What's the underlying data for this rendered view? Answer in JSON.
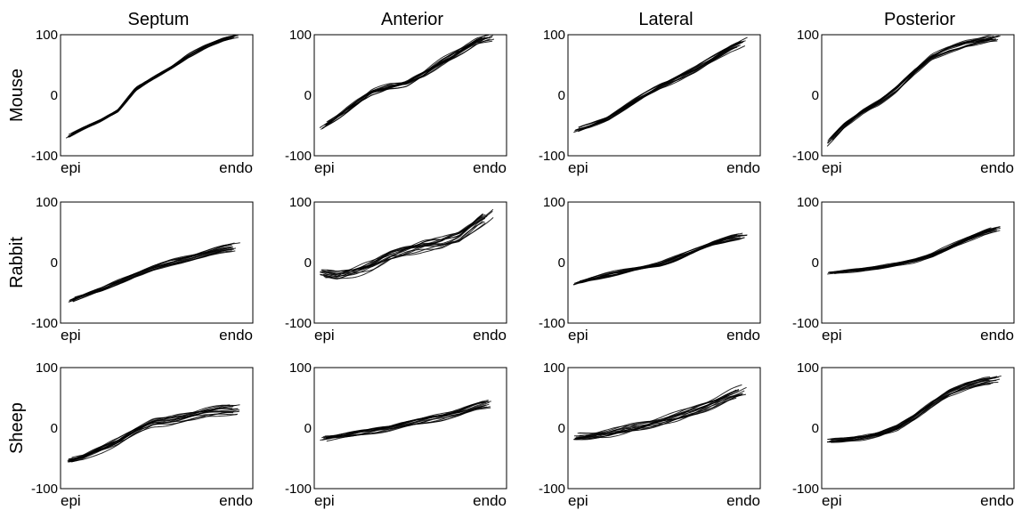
{
  "columns": [
    "Septum",
    "Anterior",
    "Lateral",
    "Posterior"
  ],
  "rows": [
    "Mouse",
    "Rabbit",
    "Sheep"
  ],
  "chart_data": {
    "type": "line",
    "layout": "small-multiples grid",
    "ylim": [
      -100,
      100
    ],
    "yticks": [
      100,
      0,
      -100
    ],
    "xtick_labels": [
      "epi",
      "endo"
    ],
    "trace_count_per_panel": 14,
    "panels": [
      {
        "row": "Mouse",
        "column": "Septum",
        "x": [
          0,
          0.1,
          0.2,
          0.3,
          0.4,
          0.5,
          0.6,
          0.7,
          0.8,
          0.9,
          1.0
        ],
        "y": [
          -70,
          -55,
          -42,
          -25,
          10,
          28,
          45,
          65,
          80,
          92,
          100
        ],
        "spread": 4
      },
      {
        "row": "Mouse",
        "column": "Anterior",
        "x": [
          0,
          0.1,
          0.2,
          0.3,
          0.4,
          0.5,
          0.6,
          0.7,
          0.8,
          0.9,
          1.0
        ],
        "y": [
          -55,
          -35,
          -15,
          5,
          15,
          20,
          35,
          55,
          72,
          88,
          97
        ],
        "spread": 9
      },
      {
        "row": "Mouse",
        "column": "Lateral",
        "x": [
          0,
          0.1,
          0.2,
          0.3,
          0.4,
          0.5,
          0.6,
          0.7,
          0.8,
          0.9,
          1.0
        ],
        "y": [
          -60,
          -50,
          -38,
          -20,
          -2,
          15,
          28,
          42,
          60,
          78,
          90
        ],
        "spread": 6
      },
      {
        "row": "Mouse",
        "column": "Posterior",
        "x": [
          0,
          0.1,
          0.2,
          0.3,
          0.4,
          0.5,
          0.6,
          0.7,
          0.8,
          0.9,
          1.0
        ],
        "y": [
          -80,
          -50,
          -28,
          -12,
          10,
          38,
          62,
          75,
          84,
          90,
          95
        ],
        "spread": 6
      },
      {
        "row": "Rabbit",
        "column": "Septum",
        "x": [
          0,
          0.1,
          0.2,
          0.3,
          0.4,
          0.5,
          0.6,
          0.7,
          0.8,
          0.9,
          1.0
        ],
        "y": [
          -65,
          -55,
          -45,
          -32,
          -20,
          -10,
          0,
          7,
          14,
          22,
          28
        ],
        "spread": 5
      },
      {
        "row": "Rabbit",
        "column": "Anterior",
        "x": [
          0,
          0.1,
          0.2,
          0.3,
          0.4,
          0.5,
          0.6,
          0.7,
          0.8,
          0.9,
          1.0
        ],
        "y": [
          -18,
          -22,
          -15,
          -5,
          10,
          20,
          28,
          32,
          42,
          65,
          85
        ],
        "spread": 12
      },
      {
        "row": "Rabbit",
        "column": "Lateral",
        "x": [
          0,
          0.1,
          0.2,
          0.3,
          0.4,
          0.5,
          0.6,
          0.7,
          0.8,
          0.9,
          1.0
        ],
        "y": [
          -35,
          -27,
          -20,
          -14,
          -8,
          -2,
          8,
          20,
          32,
          40,
          45
        ],
        "spread": 5
      },
      {
        "row": "Rabbit",
        "column": "Posterior",
        "x": [
          0,
          0.1,
          0.2,
          0.3,
          0.4,
          0.5,
          0.6,
          0.7,
          0.8,
          0.9,
          1.0
        ],
        "y": [
          -18,
          -15,
          -12,
          -8,
          -3,
          3,
          12,
          25,
          38,
          50,
          58
        ],
        "spread": 4
      },
      {
        "row": "Sheep",
        "column": "Septum",
        "x": [
          0,
          0.1,
          0.2,
          0.3,
          0.4,
          0.5,
          0.6,
          0.7,
          0.8,
          0.9,
          1.0
        ],
        "y": [
          -55,
          -48,
          -35,
          -22,
          -5,
          8,
          12,
          18,
          24,
          28,
          30
        ],
        "spread": 8
      },
      {
        "row": "Sheep",
        "column": "Anterior",
        "x": [
          0,
          0.1,
          0.2,
          0.3,
          0.4,
          0.5,
          0.6,
          0.7,
          0.8,
          0.9,
          1.0
        ],
        "y": [
          -18,
          -14,
          -10,
          -5,
          0,
          6,
          12,
          18,
          25,
          35,
          42
        ],
        "spread": 6
      },
      {
        "row": "Sheep",
        "column": "Lateral",
        "x": [
          0,
          0.1,
          0.2,
          0.3,
          0.4,
          0.5,
          0.6,
          0.7,
          0.8,
          0.9,
          1.0
        ],
        "y": [
          -15,
          -12,
          -8,
          -2,
          5,
          12,
          20,
          30,
          42,
          55,
          65
        ],
        "spread": 9
      },
      {
        "row": "Sheep",
        "column": "Posterior",
        "x": [
          0,
          0.1,
          0.2,
          0.3,
          0.4,
          0.5,
          0.6,
          0.7,
          0.8,
          0.9,
          1.0
        ],
        "y": [
          -22,
          -20,
          -16,
          -10,
          0,
          18,
          40,
          58,
          70,
          78,
          82
        ],
        "spread": 6
      }
    ]
  }
}
